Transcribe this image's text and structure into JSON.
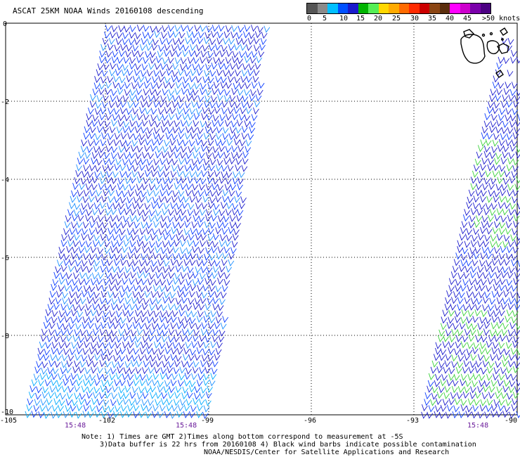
{
  "title": "ASCAT 25KM NOAA Winds 20160108 descending",
  "legend": {
    "colors": [
      "#555555",
      "#8a8a8a",
      "#00bfff",
      "#0050ff",
      "#1a1acc",
      "#00b400",
      "#55ee55",
      "#ffd700",
      "#ffaa00",
      "#ff6a00",
      "#ff2a00",
      "#cc0000",
      "#8b4513",
      "#5a2d0c",
      "#ff00ff",
      "#cc00cc",
      "#7a00aa",
      "#4b0082"
    ],
    "ticks": [
      "0",
      "5",
      "10",
      "15",
      "20",
      "25",
      "30",
      "35",
      "40",
      "45",
      ">50 knots"
    ]
  },
  "axes": {
    "y_ticks": [
      "0",
      "-2",
      "-4",
      "-6",
      "-8",
      "-10"
    ],
    "x_ticks": [
      "-105",
      "-102",
      "-99",
      "-96",
      "-93",
      "-90"
    ]
  },
  "swath_times": [
    "15:48",
    "15:48",
    "15:48"
  ],
  "notes": [
    "Note: 1) Times are GMT 2)Times along bottom correspond to measurement at -5S",
    "3)Data buffer is 22 hrs from 20160108 4) Black wind barbs indicate possible contamination",
    "NOAA/NESDIS/Center for Satellite Applications and Research"
  ]
}
